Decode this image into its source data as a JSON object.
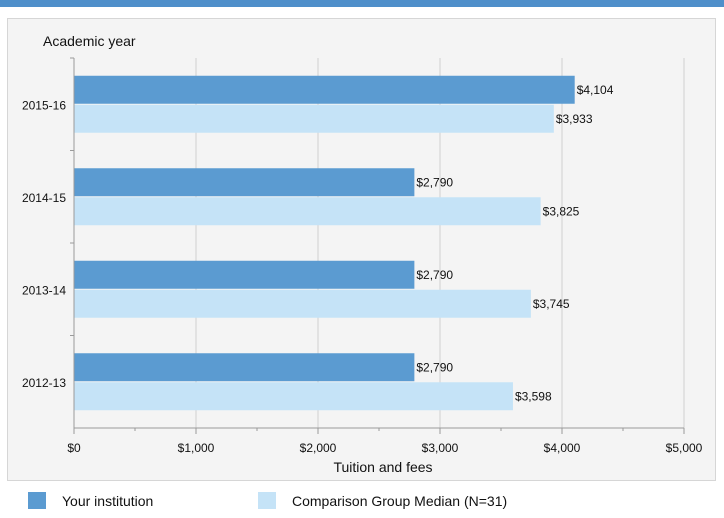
{
  "chart_data": {
    "type": "bar",
    "orientation": "horizontal",
    "y_axis_title": "Academic year",
    "xlabel": "Tuition and fees",
    "categories": [
      "2015-16",
      "2014-15",
      "2013-14",
      "2012-13"
    ],
    "series": [
      {
        "name": "Your institution",
        "color": "#5b9bd1",
        "values": [
          4104,
          2790,
          2790,
          2790
        ],
        "labels": [
          "$4,104",
          "$2,790",
          "$2,790",
          "$2,790"
        ]
      },
      {
        "name": "Comparison Group Median (N=31)",
        "color": "#c5e3f7",
        "values": [
          3933,
          3825,
          3745,
          3598
        ],
        "labels": [
          "$3,933",
          "$3,825",
          "$3,745",
          "$3,598"
        ]
      }
    ],
    "xlim": [
      0,
      5000
    ],
    "xticks": [
      0,
      1000,
      2000,
      3000,
      4000,
      5000
    ],
    "xtick_labels": [
      "$0",
      "$1,000",
      "$2,000",
      "$3,000",
      "$4,000",
      "$5,000"
    ],
    "grid": true,
    "legend_position": "bottom"
  }
}
